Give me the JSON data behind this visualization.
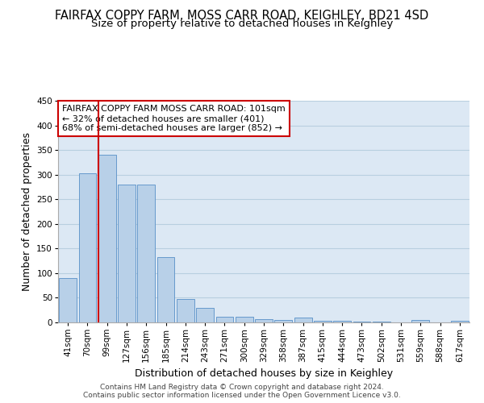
{
  "title": "FAIRFAX COPPY FARM, MOSS CARR ROAD, KEIGHLEY, BD21 4SD",
  "subtitle": "Size of property relative to detached houses in Keighley",
  "xlabel": "Distribution of detached houses by size in Keighley",
  "ylabel": "Number of detached properties",
  "categories": [
    "41sqm",
    "70sqm",
    "99sqm",
    "127sqm",
    "156sqm",
    "185sqm",
    "214sqm",
    "243sqm",
    "271sqm",
    "300sqm",
    "329sqm",
    "358sqm",
    "387sqm",
    "415sqm",
    "444sqm",
    "473sqm",
    "502sqm",
    "531sqm",
    "559sqm",
    "588sqm",
    "617sqm"
  ],
  "values": [
    90,
    302,
    341,
    280,
    280,
    132,
    47,
    30,
    11,
    12,
    7,
    5,
    10,
    4,
    4,
    2,
    1,
    0,
    5,
    0,
    4
  ],
  "bar_color": "#b8d0e8",
  "bar_edge_color": "#6699cc",
  "vline_x_index": 2,
  "vline_color": "#cc0000",
  "annotation_text": "FAIRFAX COPPY FARM MOSS CARR ROAD: 101sqm\n← 32% of detached houses are smaller (401)\n68% of semi-detached houses are larger (852) →",
  "annotation_box_color": "#ffffff",
  "annotation_box_edge": "#cc0000",
  "ylim": [
    0,
    450
  ],
  "yticks": [
    0,
    50,
    100,
    150,
    200,
    250,
    300,
    350,
    400,
    450
  ],
  "bg_color": "#ffffff",
  "plot_bg_color": "#dce8f4",
  "grid_color": "#b8cfe0",
  "footer_line1": "Contains HM Land Registry data © Crown copyright and database right 2024.",
  "footer_line2": "Contains public sector information licensed under the Open Government Licence v3.0.",
  "title_fontsize": 10.5,
  "subtitle_fontsize": 9.5,
  "axis_label_fontsize": 9,
  "tick_fontsize": 7.5,
  "annotation_fontsize": 8.0,
  "footer_fontsize": 6.5
}
